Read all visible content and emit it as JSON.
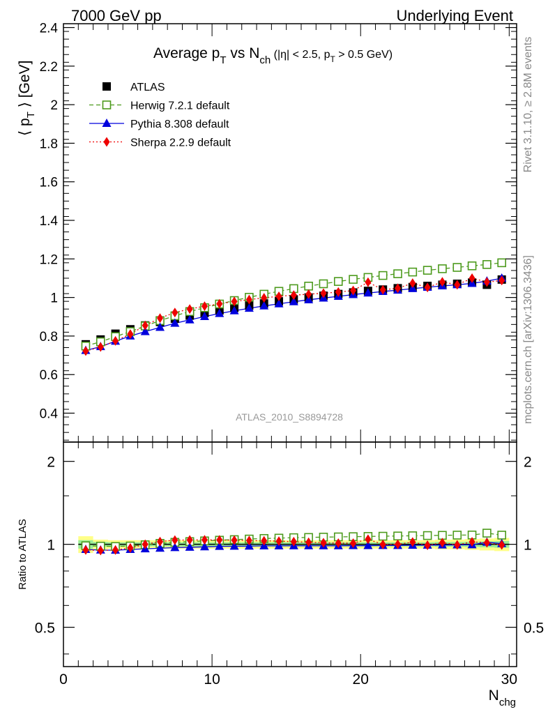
{
  "header": {
    "left": "7000 GeV pp",
    "right": "Underlying Event"
  },
  "side_labels": {
    "rivet": "Rivet 3.1.10, ≥ 2.8M events",
    "mcplots": "mcplots.cern.ch [arXiv:1306.3436]"
  },
  "chart_data": [
    {
      "type": "scatter",
      "title": "Average p_T vs N_ch (|η| < 2.5, p_T > 0.5 GeV)",
      "ylabel": "⟨ p_T ⟩ [GeV]",
      "analysis_label": "ATLAS_2010_S8894728",
      "xlim": [
        0,
        30.5
      ],
      "ylim": [
        0.25,
        2.42
      ],
      "yticks": [
        0.4,
        0.6,
        0.8,
        1,
        1.2,
        1.4,
        1.6,
        1.8,
        2,
        2.2,
        2.4
      ],
      "legend_position": "top-left",
      "x": [
        1.5,
        2.5,
        3.5,
        4.5,
        5.5,
        6.5,
        7.5,
        8.5,
        9.5,
        10.5,
        11.5,
        12.5,
        13.5,
        14.5,
        15.5,
        16.5,
        17.5,
        18.5,
        19.5,
        20.5,
        21.5,
        22.5,
        23.5,
        24.5,
        25.5,
        26.5,
        27.5,
        28.5,
        29.5
      ],
      "series": [
        {
          "name": "ATLAS",
          "color": "#000000",
          "marker": "square-filled",
          "line": "none",
          "values": [
            0.757,
            0.782,
            0.812,
            0.835,
            0.855,
            0.873,
            0.89,
            0.906,
            0.92,
            0.933,
            0.946,
            0.958,
            0.969,
            0.98,
            0.99,
            1.0,
            1.009,
            1.018,
            1.026,
            1.034,
            1.041,
            1.048,
            1.054,
            1.06,
            1.066,
            1.071,
            1.077,
            1.066,
            1.093
          ]
        },
        {
          "name": "Herwig 7.2.1 default",
          "color": "#4c9a1c",
          "marker": "square-open",
          "line": "dashed",
          "values": [
            0.748,
            0.77,
            0.797,
            0.823,
            0.852,
            0.88,
            0.905,
            0.927,
            0.947,
            0.966,
            0.984,
            1.001,
            1.017,
            1.032,
            1.046,
            1.059,
            1.071,
            1.083,
            1.094,
            1.104,
            1.114,
            1.123,
            1.132,
            1.141,
            1.149,
            1.156,
            1.164,
            1.171,
            1.18
          ]
        },
        {
          "name": "Pythia 8.308 default",
          "color": "#0000dd",
          "marker": "triangle-filled",
          "line": "solid",
          "values": [
            0.725,
            0.745,
            0.773,
            0.8,
            0.823,
            0.845,
            0.866,
            0.884,
            0.901,
            0.917,
            0.931,
            0.944,
            0.956,
            0.967,
            0.978,
            0.988,
            0.997,
            1.006,
            1.015,
            1.023,
            1.031,
            1.038,
            1.046,
            1.053,
            1.06,
            1.066,
            1.073,
            1.085,
            1.1
          ]
        },
        {
          "name": "Sherpa 2.2.9 default",
          "color": "#ee0000",
          "marker": "diamond-filled",
          "line": "dotted",
          "values": [
            0.722,
            0.743,
            0.775,
            0.81,
            0.855,
            0.893,
            0.922,
            0.94,
            0.955,
            0.967,
            0.979,
            0.989,
            0.998,
            1.006,
            1.012,
            1.017,
            1.022,
            1.028,
            1.036,
            1.079,
            1.04,
            1.048,
            1.074,
            1.052,
            1.081,
            1.066,
            1.1,
            1.08,
            1.088
          ]
        }
      ]
    },
    {
      "type": "scatter",
      "ylabel": "Ratio to ATLAS",
      "xlabel": "N_chg",
      "xlim": [
        0,
        30.5
      ],
      "ylim": [
        0.36,
        2.35
      ],
      "yticks": [
        0.5,
        1,
        2
      ],
      "xticks": [
        0,
        10,
        20,
        30
      ],
      "band_outer": [
        0.07,
        0.04,
        0.035,
        0.035,
        0.035,
        0.035,
        0.035,
        0.035,
        0.035,
        0.035,
        0.035,
        0.035,
        0.035,
        0.035,
        0.035,
        0.035,
        0.035,
        0.035,
        0.035,
        0.035,
        0.035,
        0.035,
        0.035,
        0.035,
        0.04,
        0.04,
        0.045,
        0.05,
        0.055
      ],
      "band_inner": [
        0.035,
        0.02,
        0.017,
        0.017,
        0.017,
        0.017,
        0.017,
        0.017,
        0.017,
        0.017,
        0.017,
        0.017,
        0.017,
        0.017,
        0.017,
        0.017,
        0.017,
        0.017,
        0.017,
        0.017,
        0.017,
        0.017,
        0.017,
        0.017,
        0.02,
        0.02,
        0.022,
        0.025,
        0.028
      ],
      "series": [
        {
          "name": "Herwig 7.2.1 default",
          "color": "#4c9a1c",
          "marker": "square-open",
          "line": "dashed",
          "values": [
            0.988,
            0.985,
            0.982,
            0.986,
            0.996,
            1.008,
            1.017,
            1.023,
            1.029,
            1.035,
            1.04,
            1.045,
            1.05,
            1.053,
            1.057,
            1.059,
            1.062,
            1.064,
            1.066,
            1.068,
            1.07,
            1.072,
            1.074,
            1.076,
            1.078,
            1.08,
            1.081,
            1.098,
            1.08
          ]
        },
        {
          "name": "Pythia 8.308 default",
          "color": "#0000dd",
          "marker": "triangle-filled",
          "line": "solid",
          "values": [
            0.958,
            0.953,
            0.952,
            0.958,
            0.963,
            0.968,
            0.973,
            0.976,
            0.979,
            0.983,
            0.984,
            0.985,
            0.987,
            0.987,
            0.988,
            0.988,
            0.988,
            0.988,
            0.989,
            0.989,
            0.99,
            0.99,
            0.992,
            0.993,
            0.994,
            0.995,
            0.996,
            1.018,
            1.006
          ]
        },
        {
          "name": "Sherpa 2.2.9 default",
          "color": "#ee0000",
          "marker": "diamond-filled",
          "line": "dotted",
          "values": [
            0.954,
            0.95,
            0.954,
            0.97,
            1.0,
            1.023,
            1.036,
            1.037,
            1.038,
            1.037,
            1.035,
            1.032,
            1.03,
            1.027,
            1.022,
            1.017,
            1.013,
            1.01,
            1.01,
            1.043,
            0.999,
            1.0,
            1.019,
            0.992,
            1.014,
            0.995,
            1.021,
            1.013,
            0.995
          ]
        }
      ]
    }
  ]
}
